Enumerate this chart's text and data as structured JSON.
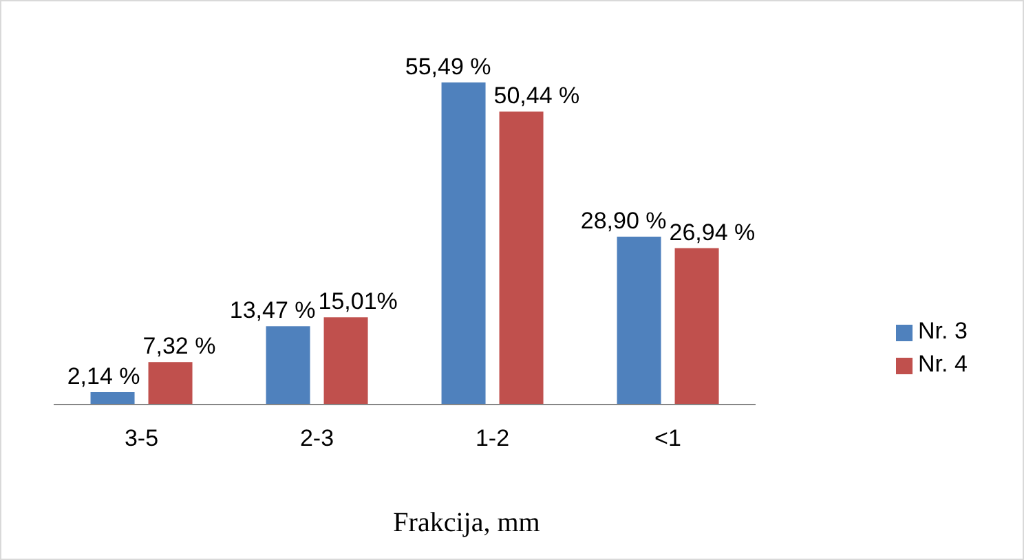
{
  "chart_data": {
    "type": "bar",
    "xlabel": "Frakcija, mm",
    "categories": [
      "3-5",
      "2-3",
      "1-2",
      "<1"
    ],
    "legend": "right",
    "grid": false,
    "series": [
      {
        "name": "Nr. 3",
        "color": "#4f81bd",
        "values": [
          2.14,
          13.47,
          55.49,
          28.9
        ],
        "value_labels": [
          "2,14 %",
          "13,47 %",
          "55,49 %",
          "28,90 %"
        ]
      },
      {
        "name": "Nr. 4",
        "color": "#c0504d",
        "values": [
          7.32,
          15.01,
          50.44,
          26.94
        ],
        "value_labels": [
          "7,32 %",
          "15,01%",
          "50,44 %",
          "26,94 %"
        ]
      }
    ]
  }
}
